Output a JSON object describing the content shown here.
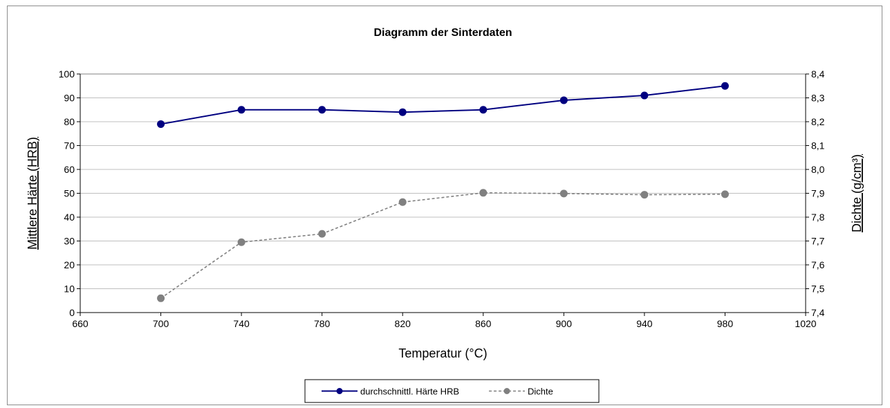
{
  "chart_data": {
    "type": "line",
    "title": "Diagramm der Sinterdaten",
    "xlabel": "Temperatur (°C)",
    "ylabel": "Mittlere Härte (HRB)",
    "y2label": "Dichte (g/cm³)",
    "xlim": [
      660,
      1020
    ],
    "ylim": [
      0,
      100
    ],
    "y2lim": [
      7.4,
      8.4
    ],
    "x_ticks": [
      "660",
      "700",
      "740",
      "780",
      "820",
      "860",
      "900",
      "940",
      "980",
      "1020"
    ],
    "y_ticks": [
      "0",
      "10",
      "20",
      "30",
      "40",
      "50",
      "60",
      "70",
      "80",
      "90",
      "100"
    ],
    "y2_ticks": [
      "7,4",
      "7,5",
      "7,6",
      "7,7",
      "7,8",
      "7,9",
      "8,0",
      "8,1",
      "8,2",
      "8,3",
      "8,4"
    ],
    "grid": true,
    "legend_position": "bottom",
    "series": [
      {
        "name": "durchschnittl. Härte HRB",
        "axis": "left",
        "color": "#000080",
        "line_style": "solid",
        "x": [
          700,
          740,
          780,
          820,
          860,
          900,
          940,
          980
        ],
        "values": [
          79,
          85,
          85,
          84,
          85,
          89,
          91,
          95
        ]
      },
      {
        "name": "Dichte",
        "axis": "right",
        "color": "#808080",
        "line_style": "dashed",
        "x": [
          700,
          740,
          780,
          820,
          860,
          900,
          940,
          980
        ],
        "values": [
          7.46,
          7.695,
          7.73,
          7.863,
          7.902,
          7.899,
          7.894,
          7.896
        ]
      }
    ]
  }
}
